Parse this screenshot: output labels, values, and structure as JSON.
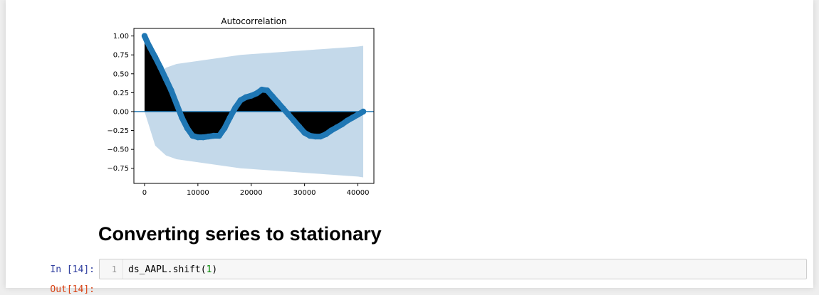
{
  "chart_data": {
    "type": "line",
    "title": "Autocorrelation",
    "xlabel": "",
    "ylabel": "",
    "xlim": [
      -2000,
      43000
    ],
    "ylim": [
      -0.95,
      1.1
    ],
    "xticks": [
      0,
      10000,
      20000,
      30000,
      40000
    ],
    "xtick_labels": [
      "0",
      "10000",
      "20000",
      "30000",
      "40000"
    ],
    "yticks": [
      1.0,
      0.75,
      0.5,
      0.25,
      0.0,
      -0.25,
      -0.5,
      -0.75
    ],
    "ytick_labels": [
      "1.00",
      "0.75",
      "0.50",
      "0.25",
      "0.00",
      "−0.25",
      "−0.50",
      "−0.75"
    ],
    "grid": false,
    "series": [
      {
        "x": [
          0,
          500,
          1000,
          2000,
          3000,
          4000,
          5000,
          6000,
          7000,
          8000,
          9000,
          10000,
          11000,
          12000,
          13000,
          14000,
          15000,
          16000,
          17000,
          18000,
          19000,
          20000,
          21000,
          22000,
          23000,
          24000,
          25000,
          26000,
          27000,
          28000,
          29000,
          30000,
          31000,
          32000,
          33000,
          34000,
          35000,
          36000,
          37000,
          38000,
          39000,
          40000,
          41000
        ],
        "y": [
          1.0,
          0.92,
          0.85,
          0.72,
          0.58,
          0.43,
          0.28,
          0.1,
          -0.08,
          -0.22,
          -0.32,
          -0.34,
          -0.34,
          -0.33,
          -0.32,
          -0.32,
          -0.22,
          -0.08,
          0.05,
          0.15,
          0.19,
          0.21,
          0.24,
          0.29,
          0.28,
          0.2,
          0.12,
          0.04,
          -0.04,
          -0.12,
          -0.2,
          -0.28,
          -0.32,
          -0.33,
          -0.33,
          -0.3,
          -0.25,
          -0.21,
          -0.17,
          -0.12,
          -0.08,
          -0.04,
          0.0
        ]
      }
    ],
    "confidence_band": {
      "x": [
        0,
        2000,
        4000,
        6000,
        8000,
        10000,
        12000,
        14000,
        16000,
        18000,
        20000,
        22000,
        24000,
        26000,
        28000,
        30000,
        32000,
        34000,
        36000,
        38000,
        40000,
        41000
      ],
      "upper": [
        0.0,
        0.45,
        0.58,
        0.63,
        0.65,
        0.67,
        0.69,
        0.71,
        0.73,
        0.75,
        0.76,
        0.77,
        0.78,
        0.79,
        0.8,
        0.81,
        0.82,
        0.83,
        0.84,
        0.85,
        0.86,
        0.87
      ],
      "lower": [
        0.0,
        -0.45,
        -0.58,
        -0.63,
        -0.65,
        -0.67,
        -0.69,
        -0.71,
        -0.73,
        -0.75,
        -0.76,
        -0.77,
        -0.78,
        -0.79,
        -0.8,
        -0.81,
        -0.82,
        -0.83,
        -0.84,
        -0.85,
        -0.86,
        -0.87
      ]
    },
    "colors": {
      "line": "#1f77b4",
      "band": "#c4d9ea",
      "fill": "#000000",
      "zero_line": "#1f77b4"
    }
  },
  "markdown": {
    "heading": "Converting series to stationary"
  },
  "code_cell": {
    "prompt": "In [14]:",
    "line_number": "1",
    "code_prefix": "ds_AAPL.shift(",
    "code_arg": "1",
    "code_suffix": ")"
  },
  "output_cell": {
    "prompt": "Out[14]:"
  }
}
